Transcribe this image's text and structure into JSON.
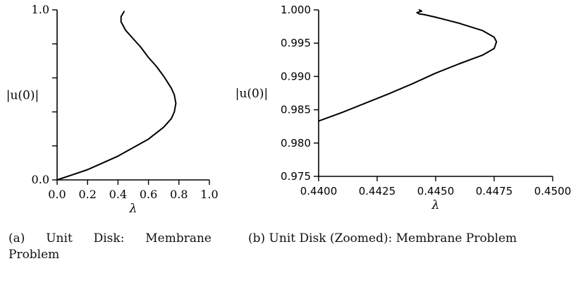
{
  "chart_data": [
    {
      "type": "line",
      "xlabel": "λ",
      "ylabel": "|u(0)|",
      "xlim": [
        0.0,
        1.0
      ],
      "ylim": [
        0.0,
        1.0
      ],
      "x_ticks": [
        "0.0",
        "0.2",
        "0.4",
        "0.6",
        "0.8",
        "1.0"
      ],
      "y_ticks": [
        "0.0",
        "",
        "",
        "",
        "",
        "1.0"
      ],
      "grid": false,
      "series": [
        {
          "x": [
            0.0,
            0.1,
            0.2,
            0.3,
            0.4,
            0.5,
            0.6,
            0.7,
            0.75,
            0.77,
            0.78,
            0.77,
            0.75,
            0.7,
            0.65,
            0.6,
            0.55,
            0.5,
            0.45,
            0.42,
            0.42,
            0.44
          ],
          "y": [
            0.0,
            0.03,
            0.06,
            0.1,
            0.14,
            0.19,
            0.24,
            0.31,
            0.36,
            0.4,
            0.45,
            0.5,
            0.54,
            0.61,
            0.67,
            0.72,
            0.78,
            0.83,
            0.88,
            0.93,
            0.96,
            0.99
          ]
        }
      ],
      "caption": "(a) Unit Disk: Membrane Problem"
    },
    {
      "type": "line",
      "xlabel": "λ",
      "ylabel": "|u(0)|",
      "xlim": [
        0.44,
        0.45
      ],
      "ylim": [
        0.975,
        1.0
      ],
      "x_ticks": [
        "0.4400",
        "0.4425",
        "0.4450",
        "0.4475",
        "0.4500"
      ],
      "y_ticks": [
        "0.975",
        "0.980",
        "0.985",
        "0.990",
        "0.995",
        "1.000"
      ],
      "grid": false,
      "series": [
        {
          "x": [
            0.44,
            0.441,
            0.442,
            0.443,
            0.444,
            0.445,
            0.446,
            0.447,
            0.4475,
            0.4476,
            0.4475,
            0.447,
            0.446,
            0.445,
            0.4445,
            0.4443,
            0.4442,
            0.4444,
            0.4443
          ],
          "y": [
            0.9833,
            0.9846,
            0.986,
            0.9874,
            0.9889,
            0.9905,
            0.9919,
            0.9932,
            0.9942,
            0.9952,
            0.9959,
            0.9969,
            0.998,
            0.9989,
            0.9993,
            0.9994,
            0.9996,
            0.9998,
            1.0
          ]
        }
      ],
      "caption": "(b) Unit Disk (Zoomed): Membrane Problem"
    }
  ]
}
